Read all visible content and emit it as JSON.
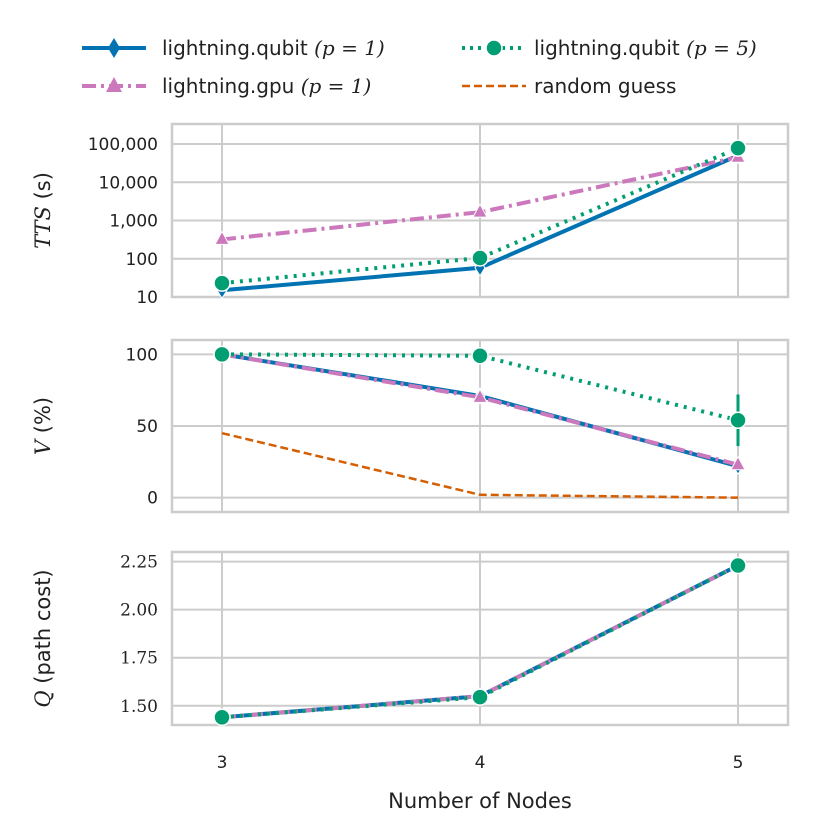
{
  "colors": {
    "qubit1": "#0173b2",
    "gpu1": "#cc78bc",
    "qubit5": "#029e73",
    "random": "#d55e00",
    "grid": "#cccccc",
    "frame": "#cccccc"
  },
  "legend": {
    "qubit1": {
      "name": "lightning.qubit",
      "param": "(p = 1)"
    },
    "gpu1": {
      "name": "lightning.gpu",
      "param": "(p = 1)"
    },
    "qubit5": {
      "name": "lightning.qubit",
      "param": "(p = 5)"
    },
    "random": {
      "name": "random guess"
    }
  },
  "xaxis": {
    "label": "Number of Nodes",
    "ticks": [
      "3",
      "4",
      "5"
    ]
  },
  "chart_data": [
    {
      "type": "line",
      "ylabel": {
        "math": "TTS",
        "rest": " (s)"
      },
      "yscale": "log",
      "ylim": [
        10,
        120000
      ],
      "yticks": [
        "10",
        "100",
        "1,000",
        "10,000",
        "100,000"
      ],
      "ytick_values": [
        10,
        100,
        1000,
        10000,
        100000
      ],
      "x": [
        3,
        4,
        5
      ],
      "series": [
        {
          "key": "qubit1",
          "values": [
            15,
            58,
            50000
          ]
        },
        {
          "key": "gpu1",
          "values": [
            320,
            1650,
            45000
          ]
        },
        {
          "key": "qubit5",
          "values": [
            23,
            105,
            78000
          ]
        }
      ]
    },
    {
      "type": "line",
      "ylabel": {
        "math": "V",
        "rest": " (%)"
      },
      "yscale": "linear",
      "ylim": [
        -10,
        110
      ],
      "yticks": [
        "0",
        "50",
        "100"
      ],
      "ytick_values": [
        0,
        50,
        100
      ],
      "x": [
        3,
        4,
        5
      ],
      "series": [
        {
          "key": "qubit1",
          "values": [
            100,
            71,
            22
          ]
        },
        {
          "key": "gpu1",
          "values": [
            100,
            70,
            23
          ]
        },
        {
          "key": "qubit5",
          "values": [
            100,
            99,
            54
          ],
          "errors": [
            0,
            0,
            18
          ]
        },
        {
          "key": "random",
          "values": [
            45,
            2,
            0
          ]
        }
      ]
    },
    {
      "type": "line",
      "ylabel": {
        "math": "Q",
        "rest": " (path cost)"
      },
      "yscale": "linear",
      "ylim": [
        1.4,
        2.3
      ],
      "yticks": [
        "1.50",
        "1.75",
        "2.00",
        "2.25"
      ],
      "ytick_values": [
        1.5,
        1.75,
        2.0,
        2.25
      ],
      "x": [
        3,
        4,
        5
      ],
      "series": [
        {
          "key": "qubit1",
          "values": [
            1.44,
            1.55,
            2.23
          ]
        },
        {
          "key": "gpu1",
          "values": [
            1.44,
            1.55,
            2.23
          ]
        },
        {
          "key": "qubit5",
          "values": [
            1.44,
            1.545,
            2.23
          ]
        }
      ]
    }
  ]
}
